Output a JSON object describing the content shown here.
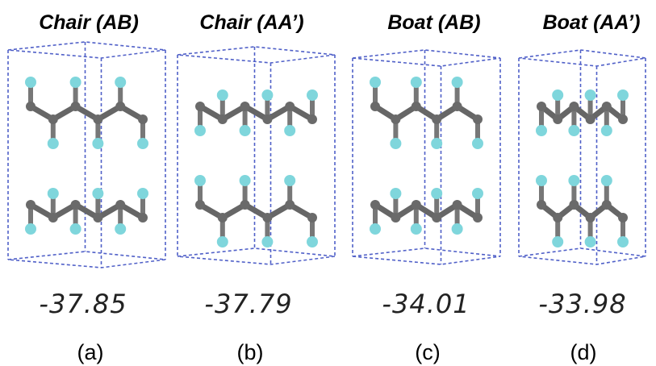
{
  "panels": [
    {
      "title": "Chair (AB)",
      "energy": "-37.85",
      "label": "(a)"
    },
    {
      "title": "Chair (AA’)",
      "energy": "-37.79",
      "label": "(b)"
    },
    {
      "title": "Boat (AB)",
      "energy": "-34.01",
      "label": "(c)"
    },
    {
      "title": "Boat (AA’)",
      "energy": "-33.98",
      "label": "(d)"
    }
  ]
}
